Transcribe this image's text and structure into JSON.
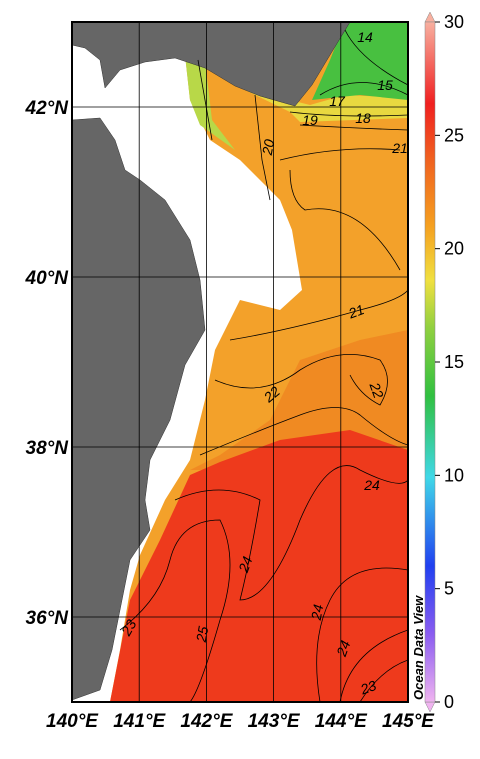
{
  "map": {
    "lonlim": [
      140,
      145
    ],
    "latlim": [
      35,
      43
    ],
    "lon_ticks": [
      {
        "value": 140,
        "label": "140°E"
      },
      {
        "value": 141,
        "label": "141°E"
      },
      {
        "value": 142,
        "label": "142°E"
      },
      {
        "value": 143,
        "label": "143°E"
      },
      {
        "value": 144,
        "label": "144°E"
      },
      {
        "value": 145,
        "label": "145°E"
      }
    ],
    "lat_ticks": [
      {
        "value": 42,
        "label": "42°N"
      },
      {
        "value": 40,
        "label": "40°N"
      },
      {
        "value": 38,
        "label": "38°N"
      },
      {
        "value": 36,
        "label": "36°N"
      }
    ],
    "colorbar": {
      "lim": [
        0,
        30
      ],
      "ticks": [
        0,
        5,
        10,
        15,
        20,
        25,
        30
      ]
    },
    "contour_labels": [
      14,
      15,
      17,
      18,
      19,
      20,
      21,
      21,
      22,
      22,
      24,
      24,
      24,
      24,
      25,
      23,
      23
    ],
    "credit": "Ocean Data View"
  }
}
